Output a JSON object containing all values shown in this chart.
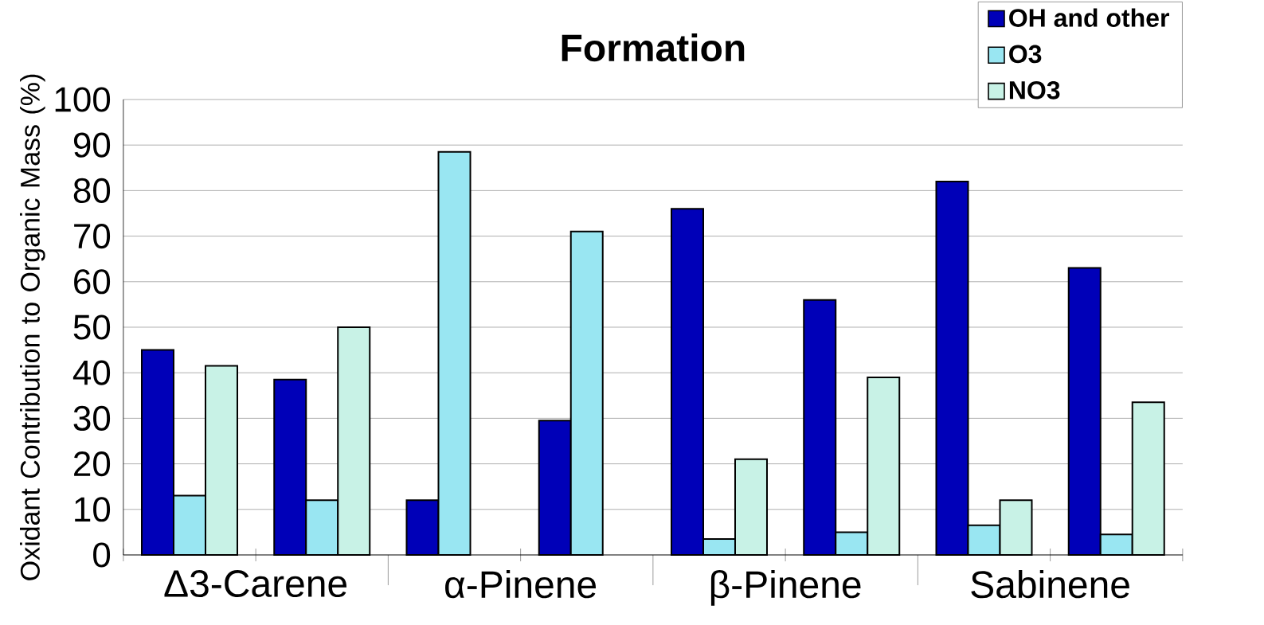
{
  "chart_data": {
    "type": "bar",
    "title": "Formation",
    "ylabel": "Oxidant Contribution to Organic Mass (%)",
    "categories": [
      null,
      null,
      null,
      null,
      null,
      null,
      null,
      null
    ],
    "annotations": [
      "Δ3-Carene",
      "α-Pinene",
      "β-Pinene",
      "Sabinene"
    ],
    "series": [
      {
        "name": "OH and other",
        "color": "#0000b8",
        "values": [
          45,
          38.5,
          12,
          29.5,
          76,
          56,
          82,
          63
        ]
      },
      {
        "name": "O3",
        "color": "#99e6f2",
        "values": [
          13,
          12,
          88.5,
          71,
          3.5,
          5,
          6.5,
          4.5
        ]
      },
      {
        "name": "NO3",
        "color": "#c8f2e6",
        "values": [
          41.5,
          50,
          null,
          null,
          21,
          39,
          12,
          33.5
        ]
      }
    ],
    "ylim": [
      0,
      100
    ],
    "yticks": [
      0,
      10,
      20,
      30,
      40,
      50,
      60,
      70,
      80,
      90,
      100
    ],
    "grid": "y",
    "legend": "top right"
  }
}
